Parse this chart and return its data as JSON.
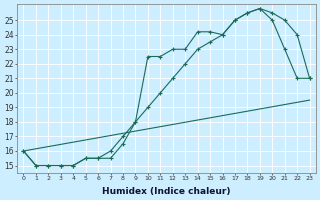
{
  "xlabel": "Humidex (Indice chaleur)",
  "bg_color": "#cceeff",
  "line_color": "#1a6b5a",
  "grid_color": "#ffffff",
  "yticks": [
    15,
    16,
    17,
    18,
    19,
    20,
    21,
    22,
    23,
    24,
    25
  ],
  "xticks": [
    0,
    1,
    2,
    3,
    4,
    5,
    6,
    7,
    8,
    9,
    10,
    11,
    12,
    13,
    14,
    15,
    16,
    17,
    18,
    19,
    20,
    21,
    22,
    23
  ],
  "line1_x": [
    0,
    1,
    2,
    3,
    4,
    5,
    6,
    7,
    8,
    9,
    10,
    11,
    12,
    13,
    14,
    15,
    16,
    17,
    18,
    19,
    20,
    21,
    22,
    23
  ],
  "line1_y": [
    16,
    15,
    15,
    15,
    15,
    15.5,
    15.5,
    15.5,
    16.5,
    18,
    22.5,
    22.5,
    23,
    23,
    24.2,
    24.2,
    24,
    25,
    25.5,
    25.8,
    25,
    23,
    21,
    21
  ],
  "line2_x": [
    0,
    1,
    2,
    3,
    4,
    5,
    6,
    7,
    8,
    9,
    10,
    11,
    12,
    13,
    14,
    15,
    16,
    17,
    18,
    19,
    20,
    21,
    22,
    23
  ],
  "line2_y": [
    16,
    15,
    15,
    15,
    15,
    15.5,
    15.5,
    16,
    17,
    18,
    19,
    20,
    21,
    22,
    23,
    23.5,
    24,
    25,
    25.5,
    25.8,
    25.5,
    25.0,
    24.0,
    21.0
  ],
  "line3_x": [
    0,
    23
  ],
  "line3_y": [
    16,
    19.5
  ]
}
